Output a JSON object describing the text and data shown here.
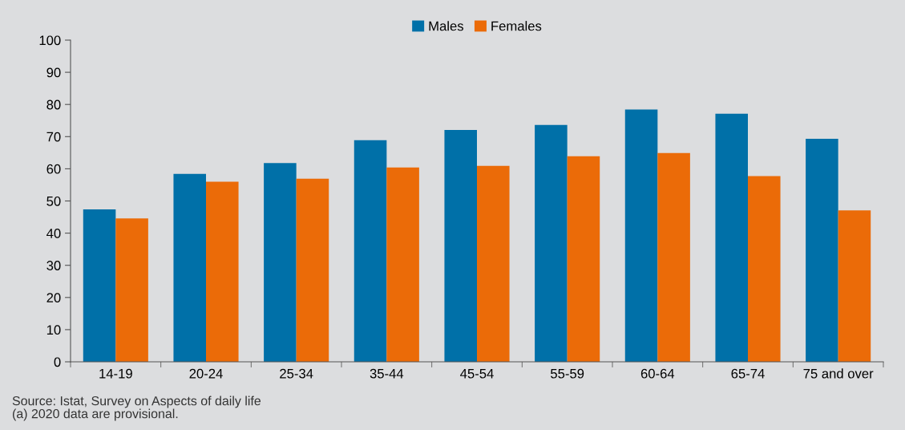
{
  "chart_data": {
    "type": "bar",
    "categories": [
      "14-19",
      "20-24",
      "25-34",
      "35-44",
      "45-54",
      "55-59",
      "60-64",
      "65-74",
      "75 and over"
    ],
    "series": [
      {
        "name": "Males",
        "color": "#0070a8",
        "values": [
          47.4,
          58.4,
          61.8,
          68.9,
          72.1,
          73.6,
          78.4,
          77.1,
          69.3
        ]
      },
      {
        "name": "Females",
        "color": "#eb6b08",
        "values": [
          44.6,
          56.0,
          56.9,
          60.4,
          60.9,
          63.9,
          64.9,
          57.7,
          47.1
        ]
      }
    ],
    "ylim": [
      0,
      100
    ],
    "yticks": [
      0,
      10,
      20,
      30,
      40,
      50,
      60,
      70,
      80,
      90,
      100
    ],
    "grid": false,
    "legend": "top",
    "annotations": [
      "Source: Istat, Survey on Aspects of daily life",
      "(a) 2020 data are provisional."
    ]
  }
}
